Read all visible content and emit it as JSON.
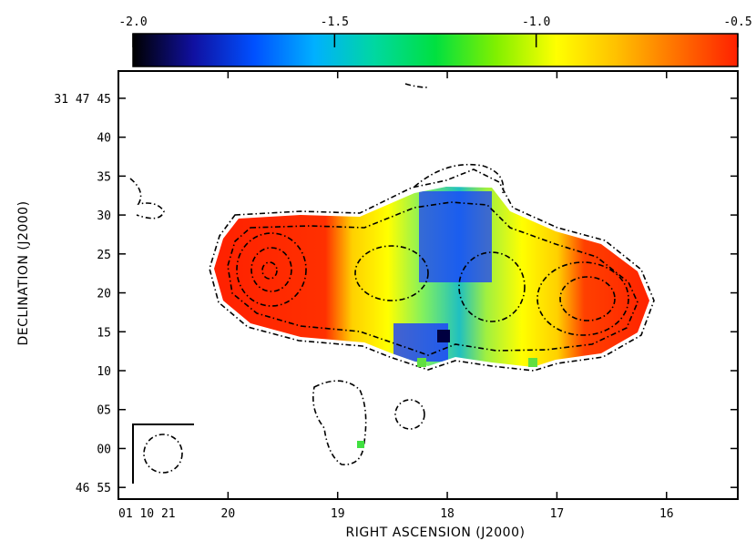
{
  "chart_data": {
    "type": "heatmap",
    "colorbar": {
      "range": [
        -2.0,
        -0.5
      ],
      "tick_labels": [
        "-2.0",
        "-1.5",
        "-1.0",
        "-0.5"
      ],
      "tick_values": [
        -2.0,
        -1.5,
        -1.0,
        -0.5
      ],
      "colormap": [
        "#000000",
        "#1010a0",
        "#0050ff",
        "#00b0ff",
        "#00d8a0",
        "#00e040",
        "#80f000",
        "#ffff00",
        "#ffc000",
        "#ff7000",
        "#ff2000"
      ]
    },
    "xlabel": "RIGHT ASCENSION (J2000)",
    "ylabel": "DECLINATION (J2000)",
    "x_ticks": [
      {
        "label": "01 10 21",
        "ra_sec": 21
      },
      {
        "label": "20",
        "ra_sec": 20
      },
      {
        "label": "19",
        "ra_sec": 19
      },
      {
        "label": "18",
        "ra_sec": 18
      },
      {
        "label": "17",
        "ra_sec": 17
      },
      {
        "label": "16",
        "ra_sec": 16
      }
    ],
    "y_ticks": [
      {
        "label": "31 47 45",
        "dec_arcsec": 45
      },
      {
        "label": "40",
        "dec_arcsec": 40
      },
      {
        "label": "35",
        "dec_arcsec": 35
      },
      {
        "label": "30",
        "dec_arcsec": 30
      },
      {
        "label": "25",
        "dec_arcsec": 25
      },
      {
        "label": "20",
        "dec_arcsec": 20
      },
      {
        "label": "15",
        "dec_arcsec": 15
      },
      {
        "label": "10",
        "dec_arcsec": 10
      },
      {
        "label": "05",
        "dec_arcsec": 5
      },
      {
        "label": "00",
        "dec_arcsec": 0
      },
      {
        "label": "46 55",
        "dec_arcsec": -5
      }
    ],
    "xlim": [
      21,
      15.35
    ],
    "ylim": [
      -6.5,
      48.5
    ]
  }
}
